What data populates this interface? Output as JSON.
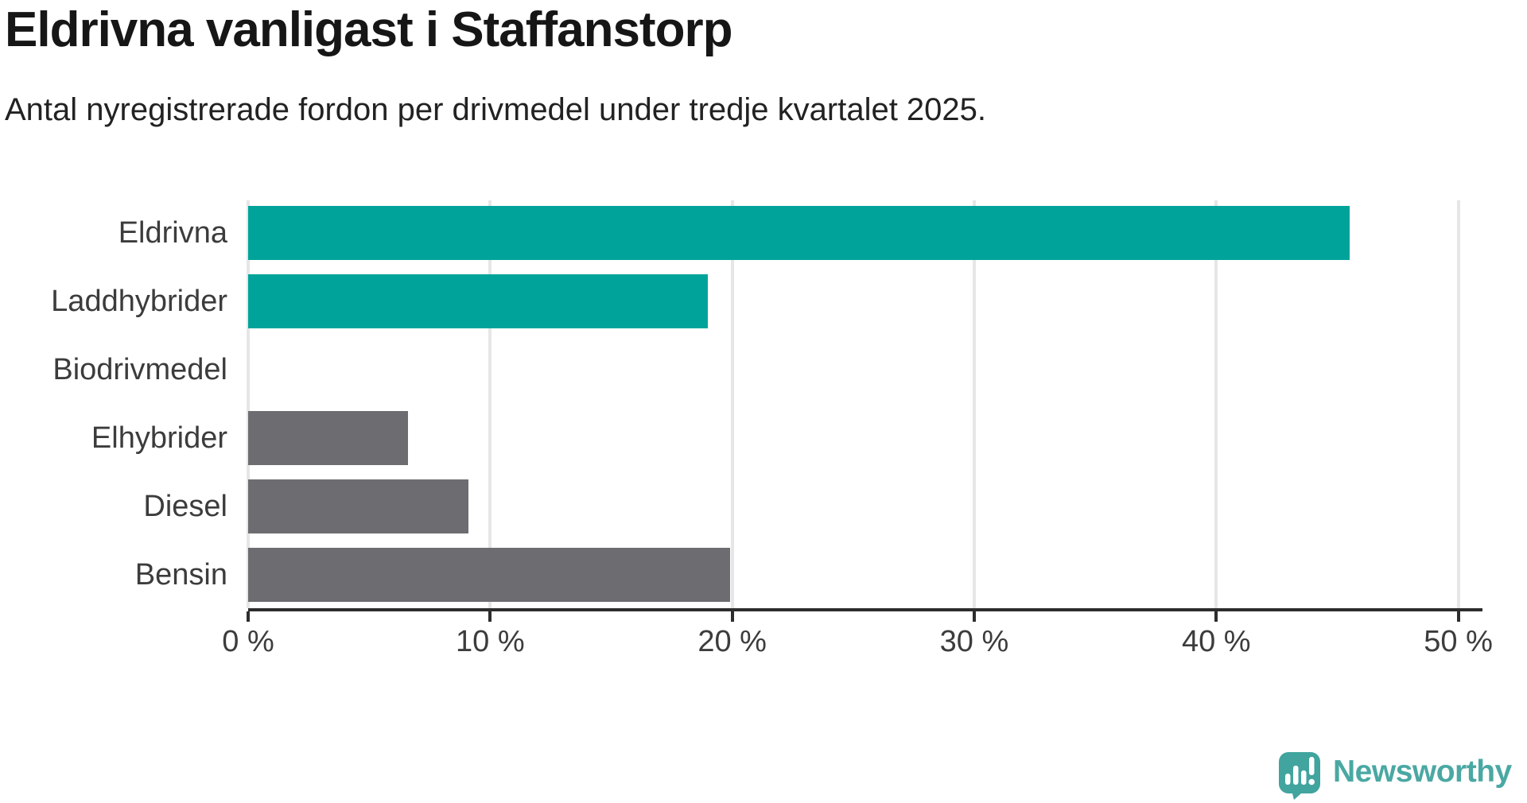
{
  "header": {
    "title": "Eldrivna vanligast i Staffanstorp",
    "subtitle": "Antal nyregistrerade fordon per drivmedel under tredje kvartalet 2025."
  },
  "chart_data": {
    "type": "bar",
    "orientation": "horizontal",
    "title": "Eldrivna vanligast i Staffanstorp",
    "subtitle": "Antal nyregistrerade fordon per drivmedel under tredje kvartalet 2025.",
    "categories": [
      "Eldrivna",
      "Laddhybrider",
      "Biodrivmedel",
      "Elhybrider",
      "Diesel",
      "Bensin"
    ],
    "values": [
      45.5,
      19.0,
      0.0,
      6.6,
      9.1,
      19.9
    ],
    "unit": "%",
    "xlabel": "",
    "ylabel": "",
    "xlim": [
      0,
      51
    ],
    "xticks": [
      0,
      10,
      20,
      30,
      40,
      50
    ],
    "xtick_labels": [
      "0 %",
      "10 %",
      "20 %",
      "30 %",
      "40 %",
      "50 %"
    ],
    "grid": "vertical-only",
    "legend": "none",
    "highlight_color": "#00a39a",
    "default_color": "#6d6d71",
    "bar_colors": [
      "#00a39a",
      "#00a39a",
      "#6d6d71",
      "#6d6d71",
      "#6d6d71",
      "#6d6d71"
    ],
    "gridline_color": "#e6e6e6",
    "axis_color": "#2d2d2d",
    "label_color": "#3c3c3c"
  },
  "footer": {
    "brand": "Newsworthy",
    "brand_color": "#4aa8a3",
    "logo_icon": "newsworthy-speech-bubble-chart-icon",
    "logo_color": "#41a49e"
  }
}
